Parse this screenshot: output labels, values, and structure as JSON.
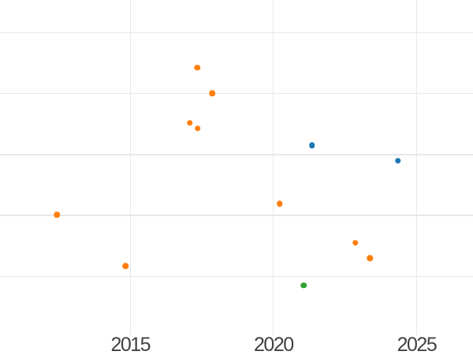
{
  "chart_data": {
    "type": "scatter",
    "title": "",
    "xlabel": "",
    "ylabel": "",
    "x_ticks": [
      {
        "value": 2015,
        "label": "2015"
      },
      {
        "value": 2020,
        "label": "2020"
      },
      {
        "value": 2025,
        "label": "2025"
      }
    ],
    "y_tick_labels": [],
    "xlim": [
      2010.45,
      2026.97
    ],
    "ylim": [
      0.03,
      5.54
    ],
    "y_gridlines": [
      1,
      2,
      3,
      4,
      5
    ],
    "grid": "on",
    "legend": "none",
    "series": [
      {
        "name": "orange",
        "color": "#ff7f0e",
        "points": [
          {
            "x": 2012.44,
            "y": 2.01
          },
          {
            "x": 2014.83,
            "y": 1.17
          },
          {
            "x": 2017.08,
            "y": 3.52
          },
          {
            "x": 2017.34,
            "y": 4.43
          },
          {
            "x": 2017.35,
            "y": 3.43
          },
          {
            "x": 2017.86,
            "y": 4.01
          },
          {
            "x": 2020.22,
            "y": 2.19
          },
          {
            "x": 2022.86,
            "y": 1.55
          },
          {
            "x": 2023.37,
            "y": 1.3
          }
        ]
      },
      {
        "name": "blue",
        "color": "#1f77b4",
        "points": [
          {
            "x": 2021.35,
            "y": 3.15
          },
          {
            "x": 2024.35,
            "y": 2.9
          }
        ]
      },
      {
        "name": "green",
        "color": "#2ca02c",
        "points": [
          {
            "x": 2021.06,
            "y": 0.85
          }
        ]
      }
    ]
  },
  "styles": {
    "background_color": "#ffffff",
    "gridline_color": "#e8e8e8",
    "tick_label_color": "#414141"
  }
}
